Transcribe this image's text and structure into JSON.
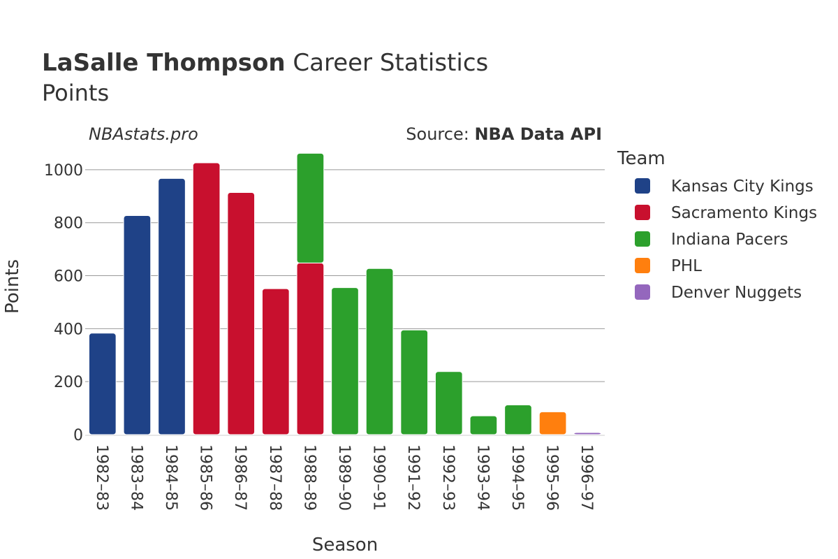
{
  "header": {
    "title_bold": "LaSalle Thompson",
    "title_rest": " Career Statistics",
    "subtitle": "Points",
    "brand": "NBAstats.pro",
    "source_prefix": "Source: ",
    "source_name": "NBA Data API"
  },
  "legend": {
    "title": "Team",
    "items": [
      {
        "name": "Kansas City Kings",
        "color": "#1f4287"
      },
      {
        "name": "Sacramento Kings",
        "color": "#c8102e"
      },
      {
        "name": "Indiana Pacers",
        "color": "#2ca02c"
      },
      {
        "name": "PHL",
        "color": "#ff7f0e"
      },
      {
        "name": "Denver Nuggets",
        "color": "#9467bd"
      }
    ]
  },
  "chart_data": {
    "type": "bar",
    "stacked": true,
    "xlabel": "Season",
    "ylabel": "Points",
    "ylim": [
      0,
      1100
    ],
    "yticks": [
      0,
      200,
      400,
      600,
      800,
      1000
    ],
    "grid": true,
    "legend_position": "right",
    "categories": [
      "1982–83",
      "1983–84",
      "1984–85",
      "1985–86",
      "1986–87",
      "1987–88",
      "1988–89",
      "1989–90",
      "1990–91",
      "1991–92",
      "1992–93",
      "1993–94",
      "1994–95",
      "1995–96",
      "1996–97"
    ],
    "series": [
      {
        "name": "Kansas City Kings",
        "color": "#1f4287",
        "values": [
          383,
          827,
          967,
          0,
          0,
          0,
          0,
          0,
          0,
          0,
          0,
          0,
          0,
          0,
          0
        ]
      },
      {
        "name": "Sacramento Kings",
        "color": "#c8102e",
        "values": [
          0,
          0,
          0,
          1026,
          914,
          551,
          648,
          0,
          0,
          0,
          0,
          0,
          0,
          0,
          0
        ]
      },
      {
        "name": "Indiana Pacers",
        "color": "#2ca02c",
        "values": [
          0,
          0,
          0,
          0,
          0,
          0,
          414,
          555,
          627,
          395,
          238,
          71,
          112,
          0,
          0
        ]
      },
      {
        "name": "PHL",
        "color": "#ff7f0e",
        "values": [
          0,
          0,
          0,
          0,
          0,
          0,
          0,
          0,
          0,
          0,
          0,
          0,
          0,
          86,
          0
        ]
      },
      {
        "name": "Denver Nuggets",
        "color": "#9467bd",
        "values": [
          0,
          0,
          0,
          0,
          0,
          0,
          0,
          0,
          0,
          0,
          0,
          0,
          0,
          0,
          8
        ]
      }
    ]
  }
}
